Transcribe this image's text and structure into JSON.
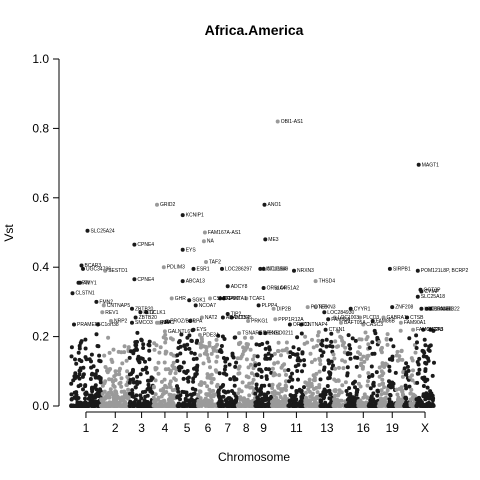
{
  "chart_data": {
    "type": "scatter",
    "subtype": "manhattan",
    "title": "Africa.America",
    "xlabel": "Chromosome",
    "ylabel": "Vst",
    "ylim": [
      0.0,
      1.0
    ],
    "yticks": [
      "0.0",
      "0.2",
      "0.4",
      "0.6",
      "0.8",
      "1.0"
    ],
    "grid": false,
    "legend": "none",
    "chromosomes": [
      "1",
      "2",
      "3",
      "4",
      "5",
      "6",
      "7",
      "8",
      "9",
      "10",
      "11",
      "12",
      "13",
      "14",
      "15",
      "16",
      "17",
      "18",
      "19",
      "20",
      "21",
      "22",
      "X"
    ],
    "xtick_labels": [
      "1",
      "2",
      "3",
      "4",
      "5",
      "6",
      "7",
      "8",
      "9",
      "11",
      "13",
      "16",
      "19",
      "X"
    ],
    "xtick_chromosomes": [
      "1",
      "2",
      "3",
      "4",
      "5",
      "6",
      "7",
      "8",
      "9",
      "11",
      "13",
      "16",
      "19",
      "X"
    ],
    "colors": {
      "odd": "#1a1a1a",
      "even": "#9a9a9a"
    },
    "labeled_points": [
      {
        "chrom": "1",
        "pos": 0.55,
        "v": 0.505,
        "label": "SLC25A24"
      },
      {
        "chrom": "1",
        "pos": 0.35,
        "v": 0.405,
        "label": "BCAR3"
      },
      {
        "chrom": "1",
        "pos": 0.4,
        "v": 0.395,
        "label": "UGC34796"
      },
      {
        "chrom": "1",
        "pos": 0.25,
        "v": 0.355,
        "label": "PTI"
      },
      {
        "chrom": "1",
        "pos": 0.3,
        "v": 0.355,
        "label": "AMY1"
      },
      {
        "chrom": "1",
        "pos": 0.05,
        "v": 0.325,
        "label": "CLSTN1"
      },
      {
        "chrom": "1",
        "pos": 0.85,
        "v": 0.3,
        "label": "FMN2"
      },
      {
        "chrom": "1",
        "pos": 0.1,
        "v": 0.235,
        "label": "PRAMEF5"
      },
      {
        "chrom": "1",
        "pos": 0.9,
        "v": 0.235,
        "label": "C1orf38"
      },
      {
        "chrom": "2",
        "pos": 0.15,
        "v": 0.39,
        "label": "SESTD1"
      },
      {
        "chrom": "2",
        "pos": 0.1,
        "v": 0.29,
        "label": "CNTNAP5"
      },
      {
        "chrom": "2",
        "pos": 0.05,
        "v": 0.27,
        "label": "REV1"
      },
      {
        "chrom": "2",
        "pos": 0.35,
        "v": 0.245,
        "label": "NRP2"
      },
      {
        "chrom": "3",
        "pos": 0.2,
        "v": 0.465,
        "label": "CPNE4"
      },
      {
        "chrom": "3",
        "pos": 0.2,
        "v": 0.365,
        "label": "CPNE4"
      },
      {
        "chrom": "3",
        "pos": 0.1,
        "v": 0.28,
        "label": "ZBTB20"
      },
      {
        "chrom": "3",
        "pos": 0.45,
        "v": 0.27,
        "label": "FLTZ"
      },
      {
        "chrom": "3",
        "pos": 0.7,
        "v": 0.27,
        "label": "DCLK1"
      },
      {
        "chrom": "3",
        "pos": 0.25,
        "v": 0.255,
        "label": "ZBTB20"
      },
      {
        "chrom": "3",
        "pos": 0.1,
        "v": 0.24,
        "label": "SMCO3"
      },
      {
        "chrom": "4",
        "pos": 0.15,
        "v": 0.58,
        "label": "GRID2"
      },
      {
        "chrom": "4",
        "pos": 0.45,
        "v": 0.4,
        "label": "PDLIM3"
      },
      {
        "chrom": "4",
        "pos": 0.8,
        "v": 0.31,
        "label": "GHR"
      },
      {
        "chrom": "4",
        "pos": 0.15,
        "v": 0.24,
        "label": "RIPK1"
      },
      {
        "chrom": "4",
        "pos": 0.25,
        "v": 0.24,
        "label": "NA"
      },
      {
        "chrom": "4",
        "pos": 0.35,
        "v": 0.24,
        "label": "NA"
      },
      {
        "chrom": "4",
        "pos": 0.6,
        "v": 0.245,
        "label": "PROZ/BCR"
      },
      {
        "chrom": "4",
        "pos": 0.5,
        "v": 0.215,
        "label": "GALNTL6"
      },
      {
        "chrom": "5",
        "pos": 0.3,
        "v": 0.55,
        "label": "KCNIP1"
      },
      {
        "chrom": "5",
        "pos": 0.3,
        "v": 0.45,
        "label": "EYS"
      },
      {
        "chrom": "5",
        "pos": 0.8,
        "v": 0.395,
        "label": "ESR1"
      },
      {
        "chrom": "5",
        "pos": 0.3,
        "v": 0.36,
        "label": "ABCA13"
      },
      {
        "chrom": "5",
        "pos": 0.6,
        "v": 0.305,
        "label": "SGK1"
      },
      {
        "chrom": "5",
        "pos": 0.9,
        "v": 0.29,
        "label": "NCOA7"
      },
      {
        "chrom": "5",
        "pos": 0.65,
        "v": 0.245,
        "label": "LPA"
      },
      {
        "chrom": "5",
        "pos": 0.8,
        "v": 0.22,
        "label": "EYS"
      },
      {
        "chrom": "6",
        "pos": 0.3,
        "v": 0.475,
        "label": "NA"
      },
      {
        "chrom": "6",
        "pos": 0.35,
        "v": 0.5,
        "label": "FAM167A-AS1"
      },
      {
        "chrom": "6",
        "pos": 0.4,
        "v": 0.415,
        "label": "TAF2"
      },
      {
        "chrom": "6",
        "pos": 0.6,
        "v": 0.31,
        "label": "CSMD1"
      },
      {
        "chrom": "6",
        "pos": 0.2,
        "v": 0.255,
        "label": "NAT2"
      },
      {
        "chrom": "6",
        "pos": 0.1,
        "v": 0.205,
        "label": "PDE3A"
      },
      {
        "chrom": "7",
        "pos": 0.2,
        "v": 0.395,
        "label": "LOC286297"
      },
      {
        "chrom": "7",
        "pos": 0.5,
        "v": 0.345,
        "label": "ADCY8"
      },
      {
        "chrom": "7",
        "pos": 0.1,
        "v": 0.31,
        "label": "ZFPM2"
      },
      {
        "chrom": "7",
        "pos": 0.3,
        "v": 0.31,
        "label": "CAMTA1"
      },
      {
        "chrom": "7",
        "pos": 0.5,
        "v": 0.265,
        "label": "TIP2"
      },
      {
        "chrom": "7",
        "pos": 0.25,
        "v": 0.255,
        "label": "ADAMTS4"
      },
      {
        "chrom": "7",
        "pos": 0.7,
        "v": 0.255,
        "label": "DCDC5"
      },
      {
        "chrom": "8",
        "pos": 0.5,
        "v": 0.31,
        "label": "TCAF1"
      },
      {
        "chrom": "8",
        "pos": 0.6,
        "v": 0.245,
        "label": "PRKG1"
      },
      {
        "chrom": "8",
        "pos": 0.1,
        "v": 0.21,
        "label": "TSNARE1"
      },
      {
        "chrom": "9",
        "pos": 0.55,
        "v": 0.58,
        "label": "ANO1"
      },
      {
        "chrom": "9",
        "pos": 0.6,
        "v": 0.48,
        "label": "ME3"
      },
      {
        "chrom": "9",
        "pos": 0.3,
        "v": 0.395,
        "label": "LINC01189"
      },
      {
        "chrom": "9",
        "pos": 0.5,
        "v": 0.395,
        "label": "CTLGR4"
      },
      {
        "chrom": "9",
        "pos": 0.5,
        "v": 0.34,
        "label": "OR51A4"
      },
      {
        "chrom": "9",
        "pos": 0.2,
        "v": 0.29,
        "label": "PLPP4"
      },
      {
        "chrom": "9",
        "pos": 0.3,
        "v": 0.21,
        "label": "PRKG1"
      },
      {
        "chrom": "9",
        "pos": 0.6,
        "v": 0.21,
        "label": "ENSO0211"
      },
      {
        "chrom": "10",
        "pos": 0.35,
        "v": 0.82,
        "label": "OBI1-AS1"
      },
      {
        "chrom": "10",
        "pos": 0.3,
        "v": 0.34,
        "label": "OR51A2"
      },
      {
        "chrom": "10",
        "pos": 0.1,
        "v": 0.28,
        "label": "DIP2B"
      },
      {
        "chrom": "10",
        "pos": 0.2,
        "v": 0.25,
        "label": "PPP1R12A"
      },
      {
        "chrom": "11",
        "pos": 0.35,
        "v": 0.39,
        "label": "NRXN3"
      },
      {
        "chrom": "11",
        "pos": 0.1,
        "v": 0.235,
        "label": "OR4D1"
      },
      {
        "chrom": "11",
        "pos": 0.8,
        "v": 0.235,
        "label": "CNTNAP4"
      },
      {
        "chrom": "12",
        "pos": 0.7,
        "v": 0.36,
        "label": "THSD4"
      },
      {
        "chrom": "12",
        "pos": 0.2,
        "v": 0.285,
        "label": "POTEB"
      },
      {
        "chrom": "12",
        "pos": 0.7,
        "v": 0.285,
        "label": "NRXN3"
      },
      {
        "chrom": "13",
        "pos": 0.3,
        "v": 0.27,
        "label": "LOC284930"
      },
      {
        "chrom": "13",
        "pos": 0.6,
        "v": 0.25,
        "label": "FAM86A"
      },
      {
        "chrom": "13",
        "pos": 0.4,
        "v": 0.22,
        "label": "CTXN1"
      },
      {
        "chrom": "14",
        "pos": 0.1,
        "v": 0.255,
        "label": "LOC1003"
      },
      {
        "chrom": "14",
        "pos": 0.6,
        "v": 0.24,
        "label": "BAFT05A"
      },
      {
        "chrom": "15",
        "pos": 0.4,
        "v": 0.28,
        "label": "CYYR1"
      },
      {
        "chrom": "16",
        "pos": 0.2,
        "v": 0.255,
        "label": "PLCD3"
      },
      {
        "chrom": "16",
        "pos": 0.5,
        "v": 0.235,
        "label": "CASC3"
      },
      {
        "chrom": "17",
        "pos": 0.4,
        "v": 0.245,
        "label": "FAM86B"
      },
      {
        "chrom": "18",
        "pos": 0.5,
        "v": 0.255,
        "label": "GABRA1"
      },
      {
        "chrom": "19",
        "pos": 0.2,
        "v": 0.395,
        "label": "SIRPB1"
      },
      {
        "chrom": "19",
        "pos": 0.5,
        "v": 0.285,
        "label": "ZNF208"
      },
      {
        "chrom": "20",
        "pos": 0.6,
        "v": 0.24,
        "label": "FAM90A1"
      },
      {
        "chrom": "21",
        "pos": 0.5,
        "v": 0.255,
        "label": "CTSB"
      },
      {
        "chrom": "22",
        "pos": 0.5,
        "v": 0.22,
        "label": "FAM66FP"
      },
      {
        "chrom": "X",
        "pos": 0.15,
        "v": 0.695,
        "label": "MAGT1"
      },
      {
        "chrom": "X",
        "pos": 0.1,
        "v": 0.39,
        "label": "POM121L8P, BCRP2"
      },
      {
        "chrom": "X",
        "pos": 0.25,
        "v": 0.335,
        "label": "GGT3P"
      },
      {
        "chrom": "X",
        "pos": 0.3,
        "v": 0.33,
        "label": "CYIAP"
      },
      {
        "chrom": "X",
        "pos": 0.1,
        "v": 0.315,
        "label": "SLC25A18"
      },
      {
        "chrom": "X",
        "pos": 0.3,
        "v": 0.28,
        "label": "LOC100128822"
      },
      {
        "chrom": "X",
        "pos": 0.6,
        "v": 0.28,
        "label": "CHRNA4"
      },
      {
        "chrom": "X",
        "pos": 0.8,
        "v": 0.28,
        "label": "CPANE1"
      },
      {
        "chrom": "X",
        "pos": 0.4,
        "v": 0.22,
        "label": "CHGA3"
      },
      {
        "chrom": "X",
        "pos": 0.8,
        "v": 0.22,
        "label": "CT8"
      }
    ]
  }
}
